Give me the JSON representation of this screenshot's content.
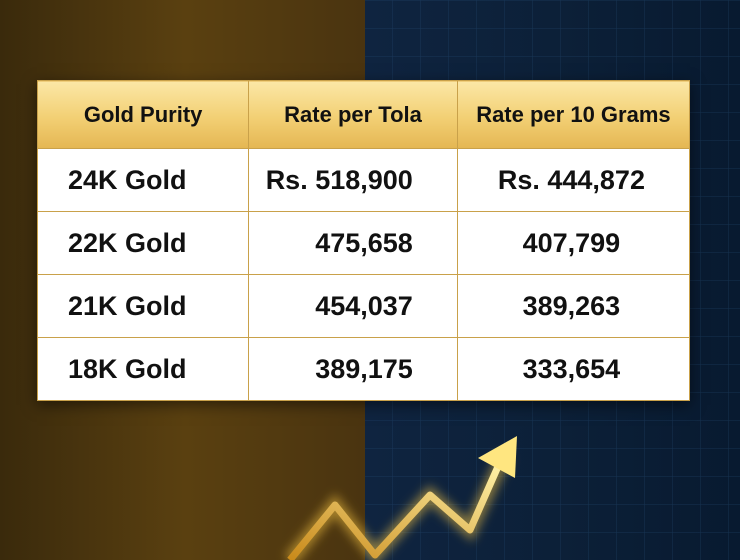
{
  "table": {
    "header": [
      "Gold Purity",
      "Rate per Tola",
      "Rate per 10 Grams"
    ],
    "rows": [
      [
        "24K Gold",
        "Rs. 518,900",
        "Rs. 444,872"
      ],
      [
        "22K Gold",
        "475,658",
        "407,799"
      ],
      [
        "21K Gold",
        "454,037",
        "389,263"
      ],
      [
        "18K Gold",
        "389,175",
        "333,654"
      ]
    ]
  }
}
